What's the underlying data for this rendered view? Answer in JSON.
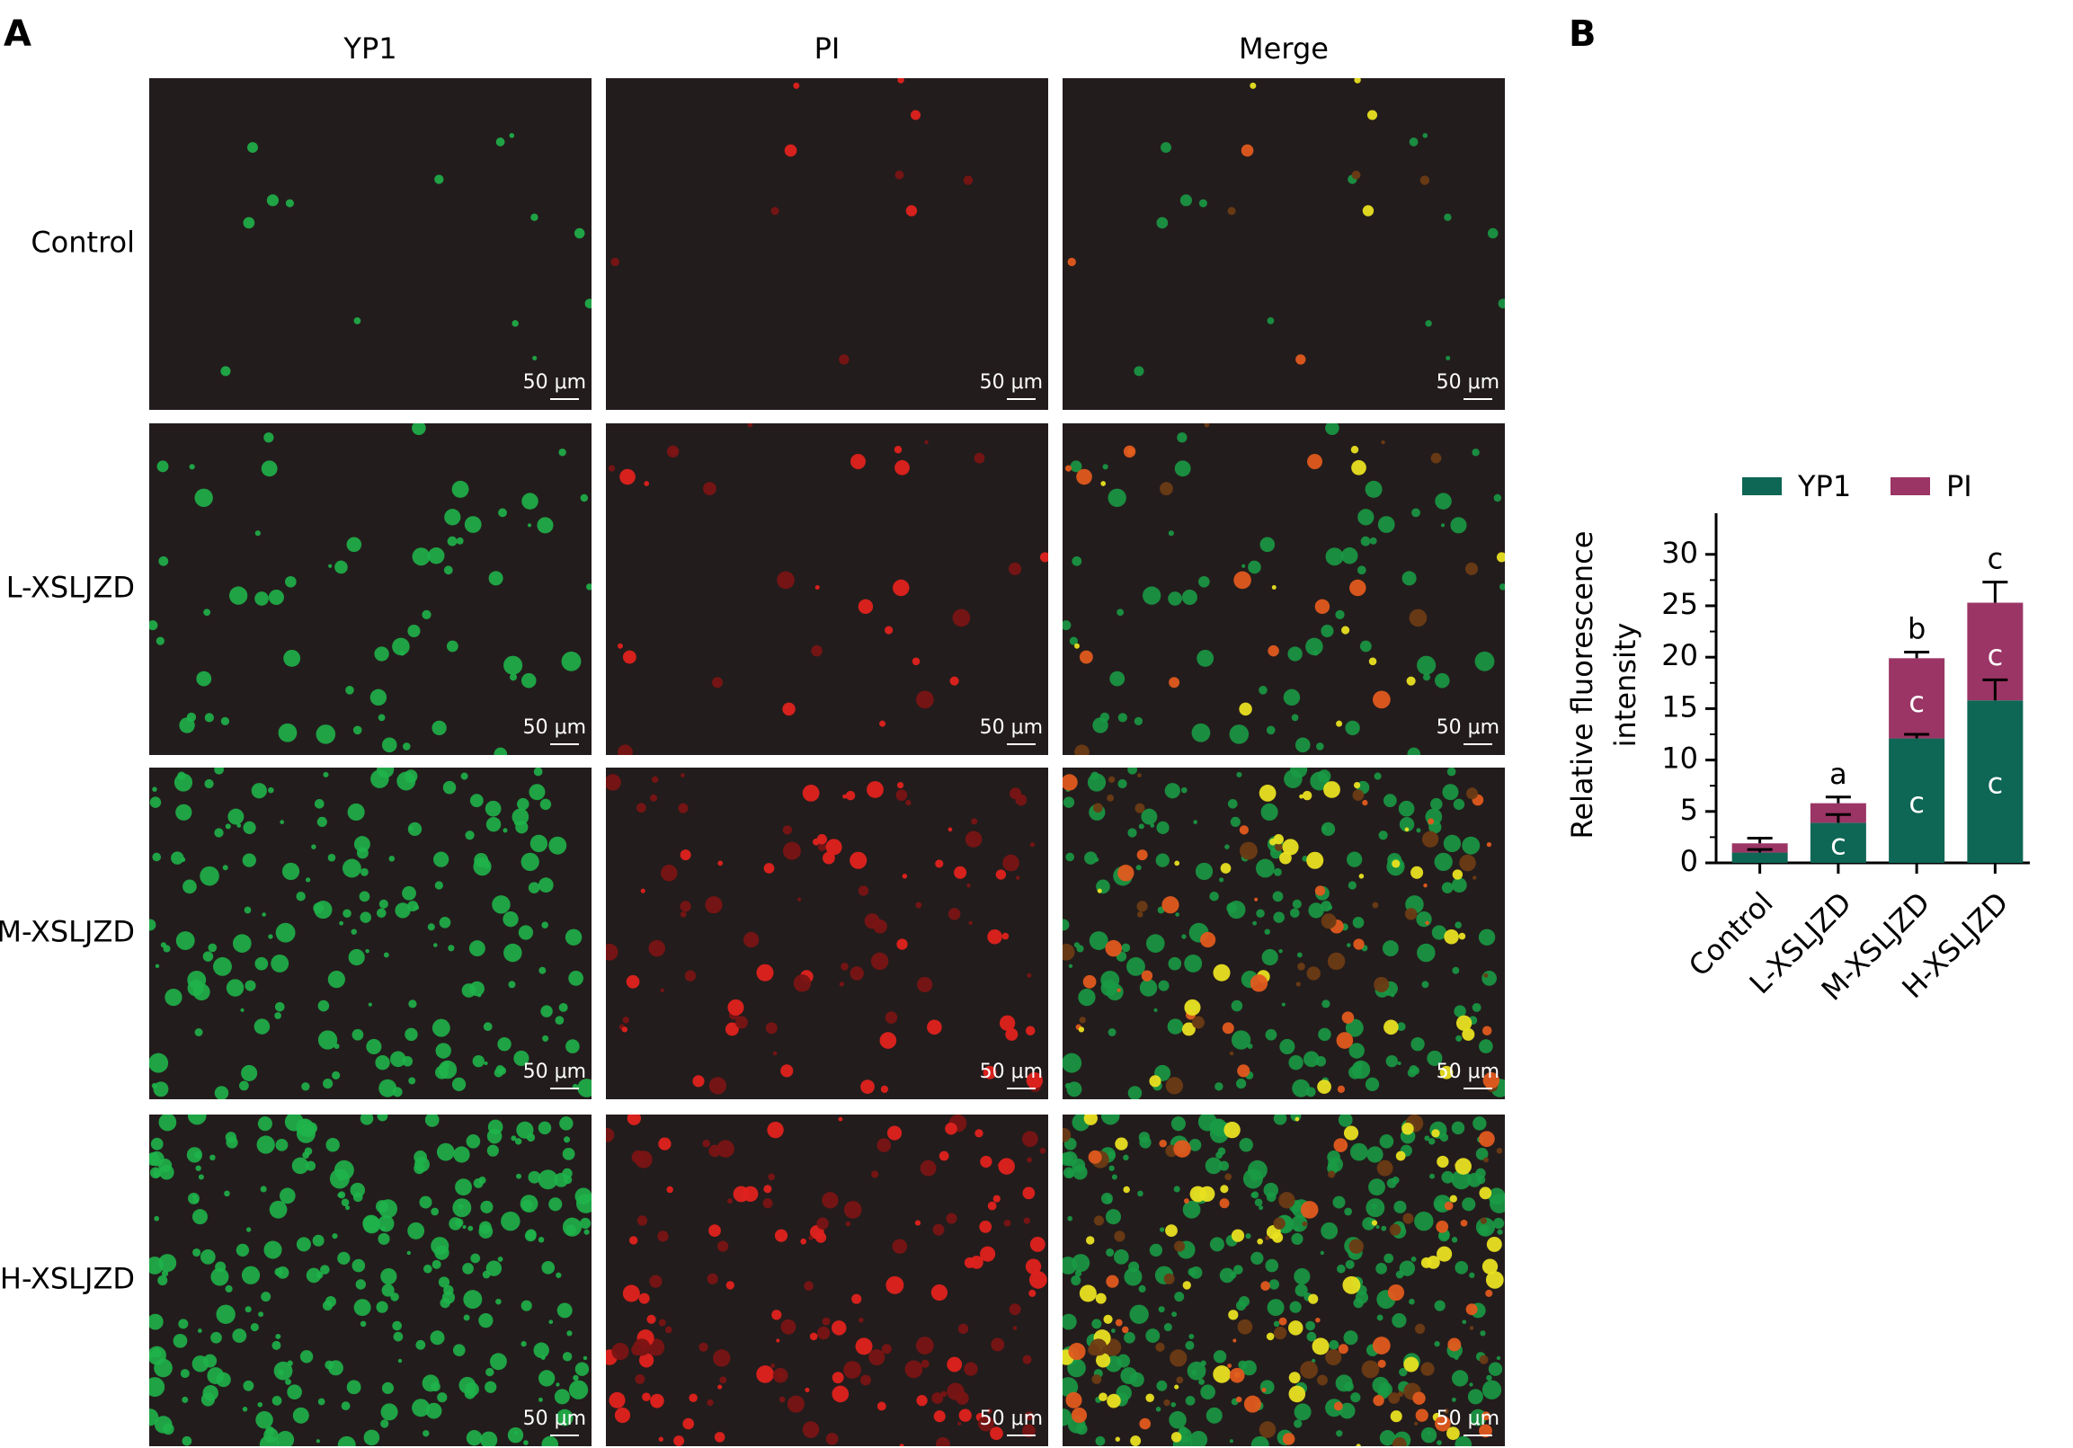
{
  "panel_a": {
    "label": "A",
    "columns": [
      "YP1",
      "PI",
      "Merge"
    ],
    "rows": [
      "Control",
      "L-XSLJZD",
      "M-XSLJZD",
      "H-XSLJZD"
    ],
    "scale_bar": "50 μm"
  },
  "chart_data": {
    "type": "stacked-bar",
    "panel_label": "B",
    "y_label": [
      "Relative fluorescence",
      "intensity"
    ],
    "categories": [
      "Control",
      "L-XSLJZD",
      "M-XSLJZD",
      "H-XSLJZD"
    ],
    "series": [
      {
        "name": "YP1",
        "color": "#0e6655",
        "values": [
          1.0,
          3.9,
          12.1,
          15.8
        ],
        "errors": [
          0.3,
          0.8,
          0.4,
          2.0
        ],
        "letters": [
          null,
          "c",
          "c",
          "c"
        ]
      },
      {
        "name": "PI",
        "color": "#9b3565",
        "values": [
          0.9,
          1.9,
          7.8,
          9.5
        ],
        "errors": [
          0.5,
          0.6,
          0.6,
          2.0
        ],
        "letters": [
          null,
          null,
          "c",
          "c"
        ]
      }
    ],
    "letters_top": [
      null,
      "a",
      "b",
      "c"
    ],
    "ylim": [
      0,
      34
    ],
    "yticks": [
      0,
      5,
      10,
      15,
      20,
      25,
      30
    ],
    "legend": "top"
  }
}
